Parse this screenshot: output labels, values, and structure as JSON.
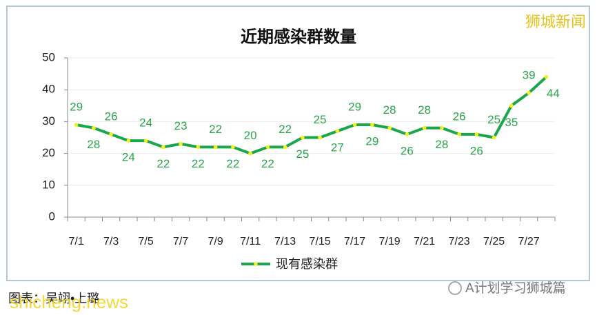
{
  "chart_data": {
    "type": "line",
    "title": "近期感染群数量",
    "categories": [
      "7/1",
      null,
      "7/3",
      null,
      "7/5",
      null,
      "7/7",
      null,
      "7/9",
      null,
      "7/11",
      null,
      "7/13",
      null,
      "7/15",
      null,
      "7/17",
      null,
      "7/19",
      null,
      "7/21",
      null,
      "7/23",
      null,
      "7/25",
      null,
      "7/27",
      null
    ],
    "series": [
      {
        "name": "现有感染群",
        "color": "#1aa64a",
        "marker_color": "#f5f01a",
        "values": [
          29,
          28,
          26,
          24,
          24,
          22,
          23,
          22,
          22,
          22,
          20,
          22,
          22,
          25,
          25,
          27,
          29,
          29,
          28,
          26,
          28,
          28,
          26,
          26,
          25,
          35,
          39,
          44
        ]
      }
    ],
    "ylim": [
      0,
      50
    ],
    "yticks": [
      0,
      10,
      20,
      30,
      40,
      50
    ],
    "grid": true,
    "legend": "bottom"
  },
  "watermark": "狮城新闻",
  "source": "图表：吴翊•上璐",
  "site": "shicheng.news",
  "account": "A计划学习狮城篇"
}
